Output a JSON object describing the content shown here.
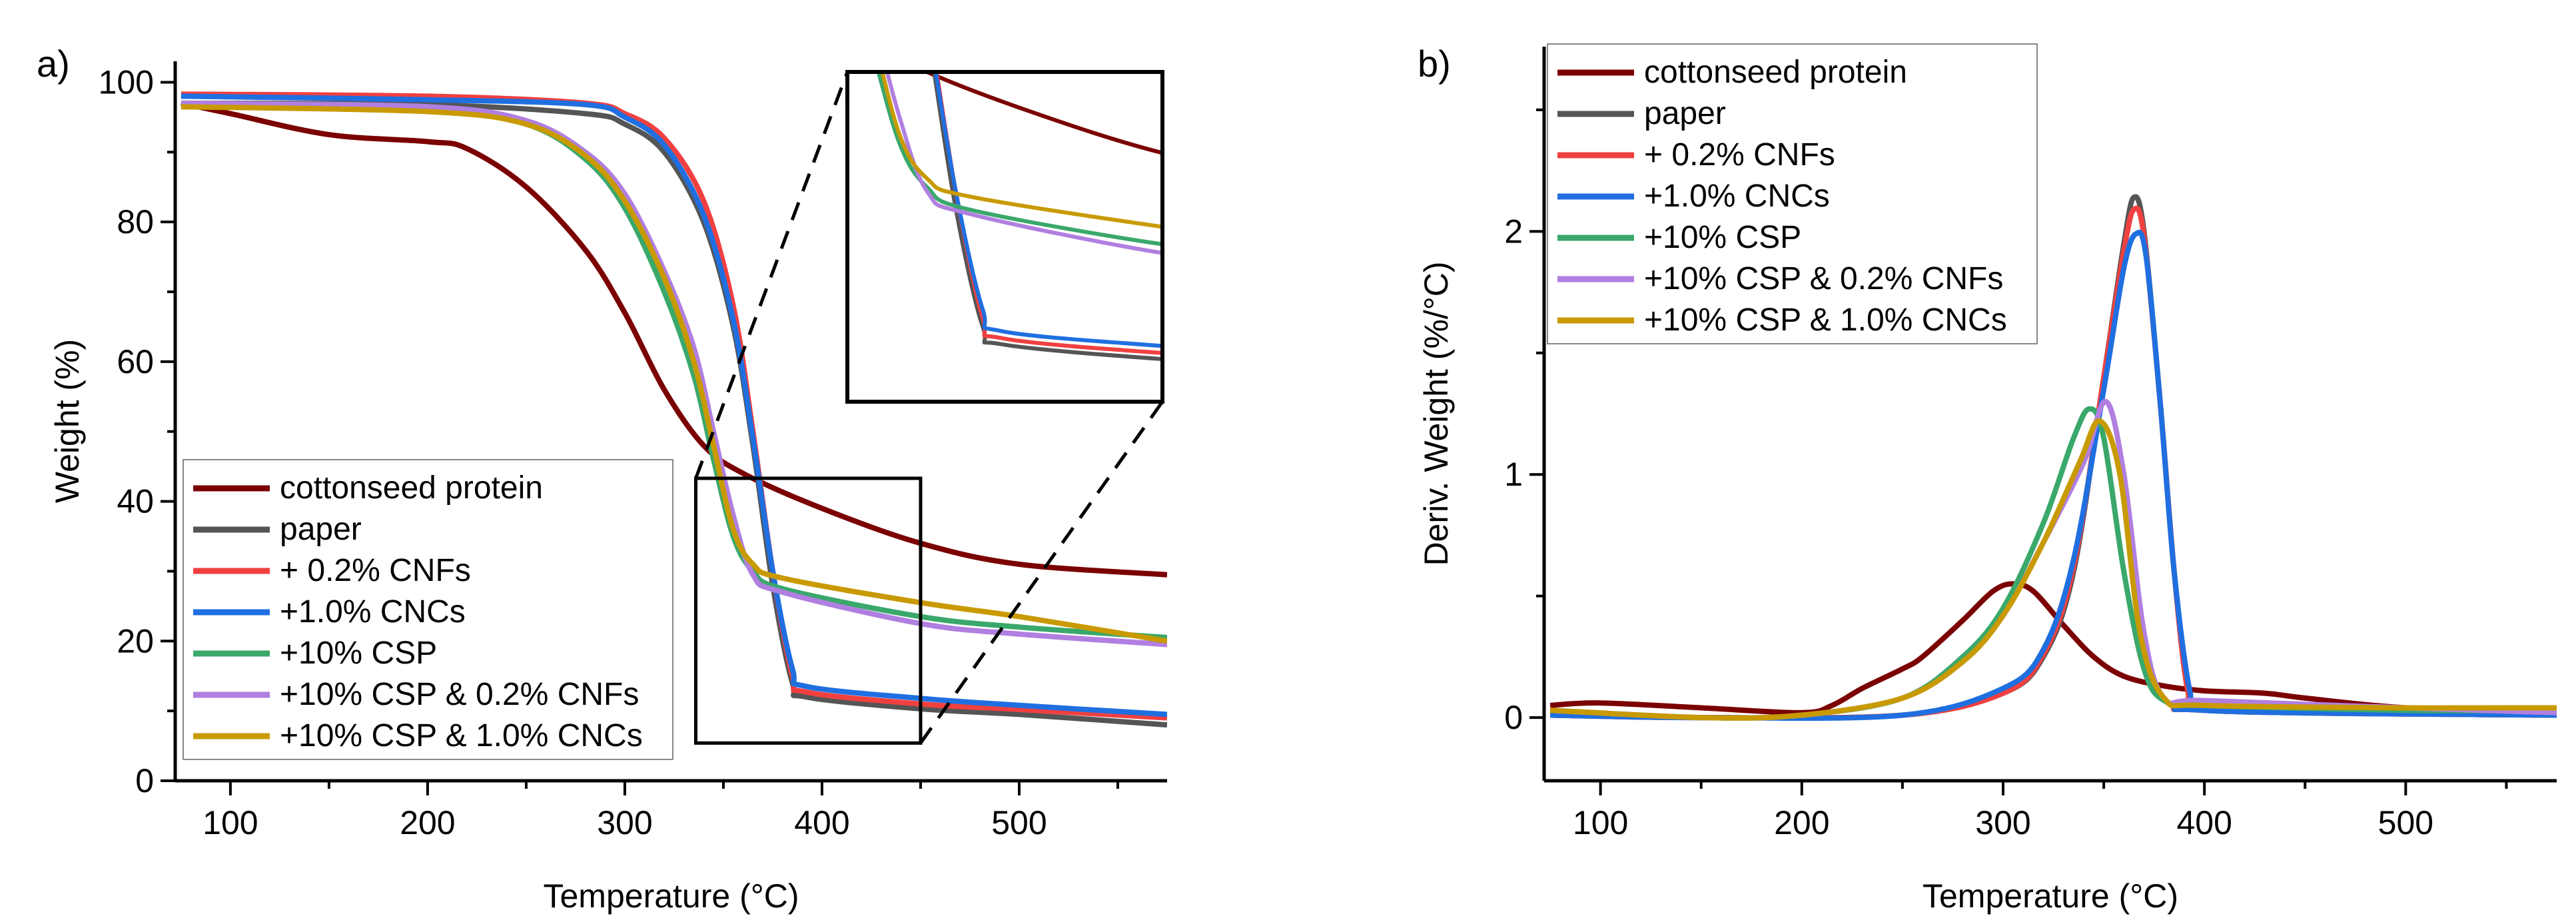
{
  "colors": {
    "cottonseed protein": "#7b0000",
    "paper": "#555555",
    "+ 0.2% CNFs": "#f04040",
    "+1.0% CNCs": "#1f6fe0",
    "+10% CSP": "#3aa86b",
    "+10% CSP & 0.2% CNFs": "#b07fe0",
    "+10% CSP & 1.0% CNCs": "#c89a00"
  },
  "chart_data": [
    {
      "type": "line",
      "panel_label": "a)",
      "xlabel": "Temperature (°C)",
      "ylabel": "Weight (%)",
      "xlim": [
        72,
        575
      ],
      "ylim": [
        0,
        103
      ],
      "xticks": [
        100,
        200,
        300,
        400,
        500
      ],
      "yticks": [
        0,
        20,
        40,
        60,
        80,
        100
      ],
      "legend": "bottom-left",
      "inset": {
        "xlim": [
          336,
          450
        ],
        "ylim": [
          5.4,
          43.3
        ],
        "placement": "top-right"
      },
      "series": [
        {
          "name": "cottonseed protein",
          "x": [
            75,
            100,
            150,
            200,
            220,
            250,
            280,
            300,
            320,
            340,
            360,
            400,
            450,
            500,
            575
          ],
          "y": [
            97,
            95.5,
            92.5,
            91.5,
            90.5,
            85,
            76,
            67,
            56,
            48,
            44,
            39,
            34,
            31,
            29.5
          ]
        },
        {
          "name": "paper",
          "x": [
            75,
            200,
            280,
            300,
            320,
            340,
            355,
            365,
            375,
            385,
            392,
            450,
            500,
            575
          ],
          "y": [
            97,
            96.8,
            95.5,
            94,
            90,
            80,
            65,
            48,
            28,
            14,
            12,
            10.3,
            9.5,
            8
          ]
        },
        {
          "name": "+ 0.2% CNFs",
          "x": [
            75,
            200,
            280,
            300,
            320,
            340,
            355,
            365,
            375,
            385,
            392,
            450,
            500,
            575
          ],
          "y": [
            98.3,
            98,
            97,
            95.5,
            92,
            83,
            68,
            50,
            30,
            15,
            12.7,
            11,
            10.2,
            9
          ]
        },
        {
          "name": "+1.0% CNCs",
          "x": [
            75,
            200,
            280,
            300,
            320,
            340,
            355,
            365,
            375,
            385,
            392,
            450,
            500,
            575
          ],
          "y": [
            98,
            97.5,
            96.8,
            95,
            91,
            81,
            66,
            49,
            30,
            16,
            13.5,
            11.8,
            10.8,
            9.5
          ]
        },
        {
          "name": "+10% CSP",
          "x": [
            75,
            200,
            250,
            280,
            300,
            320,
            335,
            345,
            355,
            365,
            380,
            450,
            500,
            575
          ],
          "y": [
            97,
            96,
            94,
            89,
            82,
            70,
            58,
            46,
            35,
            30,
            27.5,
            23.5,
            22,
            20.5
          ]
        },
        {
          "name": "+10% CSP & 0.2% CNFs",
          "x": [
            75,
            200,
            250,
            280,
            300,
            320,
            335,
            345,
            355,
            365,
            380,
            450,
            500,
            575
          ],
          "y": [
            97,
            96.5,
            94.5,
            90,
            84,
            73,
            62,
            50,
            38,
            29.5,
            27,
            22.5,
            21,
            19.5
          ]
        },
        {
          "name": "+10% CSP & 1.0% CNCs",
          "x": [
            75,
            200,
            250,
            280,
            300,
            320,
            335,
            345,
            355,
            365,
            380,
            450,
            500,
            575
          ],
          "y": [
            96.5,
            95.8,
            94,
            89.5,
            83,
            72,
            60,
            48,
            36,
            31,
            29,
            25.5,
            23.5,
            20
          ]
        }
      ]
    },
    {
      "type": "line",
      "panel_label": "b)",
      "xlabel": "Temperature (°C)",
      "ylabel": "Deriv. Weight (%/°C)",
      "xlim": [
        72,
        575
      ],
      "ylim": [
        -0.26,
        2.76
      ],
      "xticks": [
        100,
        200,
        300,
        400,
        500
      ],
      "yticks": [
        0,
        1,
        2
      ],
      "legend": "top-left",
      "series": [
        {
          "name": "cottonseed protein",
          "x": [
            75,
            100,
            150,
            200,
            215,
            230,
            250,
            260,
            280,
            295,
            305,
            315,
            330,
            345,
            360,
            380,
            400,
            430,
            450,
            500,
            575
          ],
          "y": [
            0.05,
            0.06,
            0.04,
            0.02,
            0.05,
            0.12,
            0.2,
            0.25,
            0.4,
            0.52,
            0.55,
            0.52,
            0.38,
            0.25,
            0.17,
            0.13,
            0.11,
            0.1,
            0.08,
            0.04,
            0.02
          ]
        },
        {
          "name": "paper",
          "x": [
            75,
            150,
            250,
            300,
            320,
            335,
            350,
            360,
            365,
            370,
            378,
            385,
            392,
            400,
            575
          ],
          "y": [
            0.01,
            0,
            0.01,
            0.1,
            0.25,
            0.6,
            1.4,
            1.95,
            2.14,
            2.0,
            1.3,
            0.6,
            0.1,
            0.03,
            0.01
          ]
        },
        {
          "name": "+ 0.2% CNFs",
          "x": [
            75,
            150,
            250,
            300,
            320,
            335,
            350,
            360,
            365,
            370,
            378,
            385,
            392,
            400,
            575
          ],
          "y": [
            0.01,
            0,
            0.01,
            0.1,
            0.26,
            0.62,
            1.4,
            1.92,
            2.09,
            1.98,
            1.3,
            0.6,
            0.1,
            0.03,
            0.01
          ]
        },
        {
          "name": "+1.0% CNCs",
          "x": [
            75,
            150,
            250,
            300,
            320,
            335,
            350,
            360,
            366,
            371,
            378,
            385,
            393,
            400,
            575
          ],
          "y": [
            0.01,
            0,
            0.01,
            0.12,
            0.28,
            0.65,
            1.35,
            1.85,
            1.99,
            1.9,
            1.3,
            0.6,
            0.1,
            0.03,
            0.01
          ]
        },
        {
          "name": "+10% CSP",
          "x": [
            75,
            150,
            200,
            250,
            280,
            300,
            320,
            335,
            343,
            350,
            360,
            370,
            380,
            400,
            500,
            575
          ],
          "y": [
            0.03,
            0,
            0.01,
            0.08,
            0.25,
            0.45,
            0.8,
            1.15,
            1.27,
            1.15,
            0.6,
            0.2,
            0.07,
            0.05,
            0.03,
            0.03
          ]
        },
        {
          "name": "+10% CSP & 0.2% CNFs",
          "x": [
            75,
            150,
            200,
            250,
            280,
            300,
            320,
            340,
            351,
            360,
            370,
            380,
            400,
            500,
            575
          ],
          "y": [
            0.03,
            0,
            0.01,
            0.08,
            0.23,
            0.42,
            0.72,
            1.05,
            1.3,
            1.0,
            0.35,
            0.08,
            0.07,
            0.04,
            0.02
          ]
        },
        {
          "name": "+10% CSP & 1.0% CNCs",
          "x": [
            75,
            150,
            200,
            250,
            280,
            300,
            320,
            338,
            348,
            358,
            368,
            380,
            400,
            500,
            575
          ],
          "y": [
            0.03,
            0,
            0.01,
            0.08,
            0.23,
            0.42,
            0.72,
            1.05,
            1.22,
            1.0,
            0.35,
            0.08,
            0.05,
            0.04,
            0.04
          ]
        }
      ]
    }
  ]
}
